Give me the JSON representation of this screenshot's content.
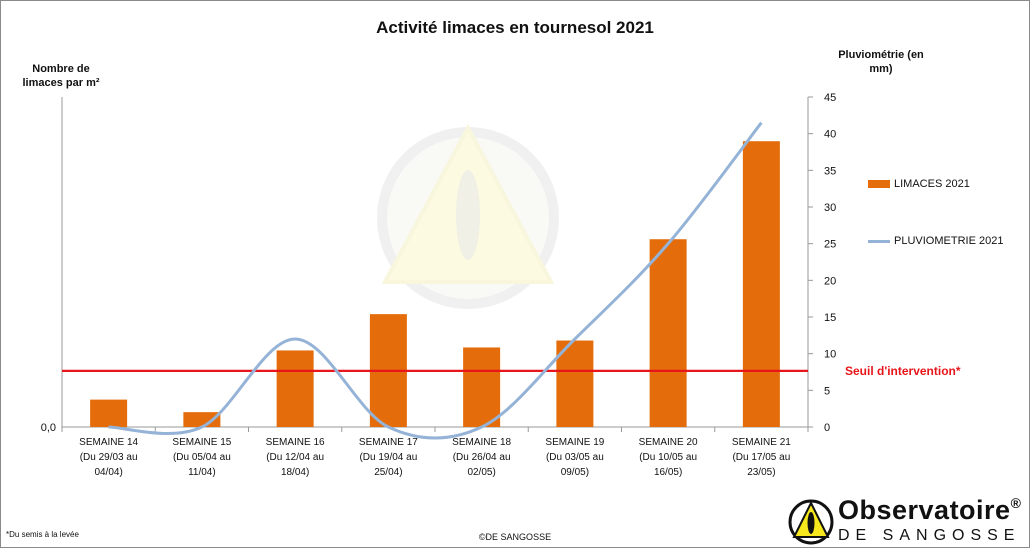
{
  "chart_data": {
    "type": "bar",
    "title": "Activité limaces en tournesol 2021",
    "ylabel_left": "Nombre de limaces par m²",
    "ylabel_right": "Pluviométrie (en mm)",
    "left_axis_tick": "0,0",
    "categories": [
      [
        "SEMAINE 14",
        "(Du 29/03 au",
        "04/04)"
      ],
      [
        "SEMAINE 15",
        "(Du 05/04 au",
        "11/04)"
      ],
      [
        "SEMAINE 16",
        "(Du 12/04 au",
        "18/04)"
      ],
      [
        "SEMAINE 17",
        "(Du 19/04 au",
        "25/04)"
      ],
      [
        "SEMAINE 18",
        "(Du 26/04 au",
        "02/05)"
      ],
      [
        "SEMAINE 19",
        "(Du 03/05 au",
        "09/05)"
      ],
      [
        "SEMAINE 20",
        "(Du 10/05 au",
        "16/05)"
      ],
      [
        "SEMAINE 21",
        "(Du 17/05 au",
        "23/05)"
      ]
    ],
    "series": [
      {
        "name": "LIMACES 2021",
        "type": "bar",
        "axis": "left",
        "color": "#e46c0a",
        "values": [
          0.083,
          0.045,
          0.232,
          0.342,
          0.241,
          0.262,
          0.569,
          0.866
        ]
      },
      {
        "name": "PLUVIOMETRIE 2021",
        "type": "line",
        "axis": "right",
        "color": "#95b3d7",
        "values": [
          0,
          0,
          12,
          0,
          0,
          12,
          25,
          41.5
        ]
      }
    ],
    "left_ylim": [
      0,
      1
    ],
    "right_ylim": [
      0,
      45
    ],
    "right_ticks": [
      0,
      5,
      10,
      15,
      20,
      25,
      30,
      35,
      40,
      45
    ],
    "threshold": {
      "label": "Seuil d'intervention*",
      "value": 0.17,
      "color": "#e8151b"
    },
    "legend_position": "right"
  },
  "footnote": "*Du semis à la levée",
  "copyright": "©DE SANGOSSE",
  "logo": {
    "title": "Observatoire",
    "reg": "®",
    "subtitle": "DE SANGOSSE"
  }
}
